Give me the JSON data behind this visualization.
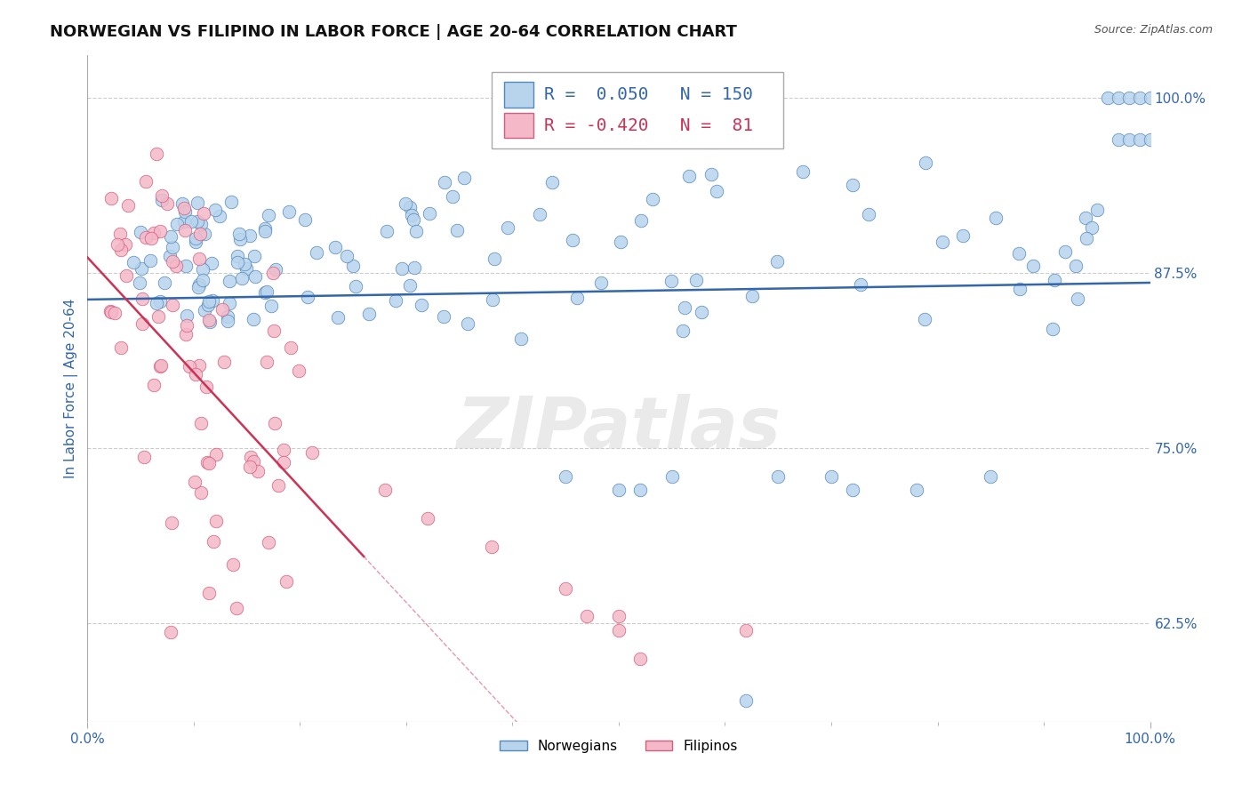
{
  "title": "NORWEGIAN VS FILIPINO IN LABOR FORCE | AGE 20-64 CORRELATION CHART",
  "source_text": "Source: ZipAtlas.com",
  "ylabel": "In Labor Force | Age 20-64",
  "xlim": [
    0.0,
    1.0
  ],
  "ylim": [
    0.555,
    1.03
  ],
  "x_tick_labels": [
    "0.0%",
    "100.0%"
  ],
  "y_tick_labels_right": [
    "62.5%",
    "75.0%",
    "87.5%",
    "100.0%"
  ],
  "y_tick_vals_right": [
    0.625,
    0.75,
    0.875,
    1.0
  ],
  "norwegian_color": "#b8d4ed",
  "norwegian_edge_color": "#5588bb",
  "filipino_color": "#f4b8c8",
  "filipino_edge_color": "#d06080",
  "norwegian_line_color": "#3366aa",
  "filipino_line_color": "#cc3355",
  "legend_norwegian_label": "Norwegians",
  "legend_filipino_label": "Filipinos",
  "R_norwegian": 0.05,
  "N_norwegian": 150,
  "R_filipino": -0.42,
  "N_filipino": 81,
  "watermark": "ZIPatlas",
  "title_fontsize": 13,
  "label_fontsize": 11,
  "tick_fontsize": 11,
  "background_color": "#ffffff",
  "grid_color": "#cccccc"
}
